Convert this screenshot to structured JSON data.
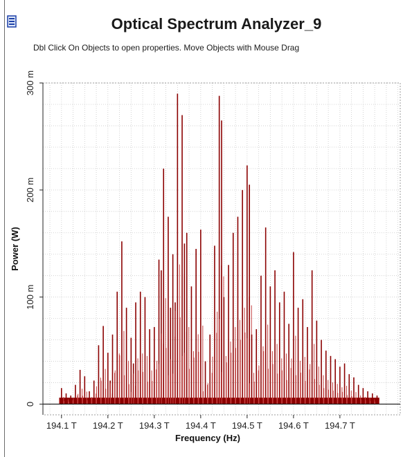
{
  "window": {
    "title": "Optical Spectrum Analyzer_9",
    "hint": "Dbl Click On Objects to open properties.  Move Objects with Mouse Drag"
  },
  "colors": {
    "trace": "#8b0000",
    "trace_light": "#c44040",
    "grid": "#c8c8c8",
    "axis": "#222222"
  },
  "chart_data": {
    "type": "bar",
    "xlabel": "Frequency (Hz)",
    "ylabel": "Power (W)",
    "xlim": [
      194.06,
      194.83
    ],
    "ylim": [
      -10,
      300
    ],
    "x_tick_labels": [
      "194.1 T",
      "194.2 T",
      "194.3 T",
      "194.4 T",
      "194.5 T",
      "194.6 T",
      "194.7 T"
    ],
    "x_ticks": [
      194.1,
      194.2,
      194.3,
      194.4,
      194.5,
      194.6,
      194.7
    ],
    "y_tick_labels": [
      "0",
      "100 m",
      "200 m",
      "300 m"
    ],
    "y_ticks": [
      0,
      100,
      200,
      300
    ],
    "grid": true,
    "units": {
      "x": "THz",
      "y": "mW"
    },
    "series": [
      {
        "x": [
          194.1,
          194.11,
          194.12,
          194.13,
          194.14,
          194.15,
          194.16,
          194.17,
          194.18,
          194.19,
          194.2,
          194.205,
          194.21,
          194.22,
          194.23,
          194.24,
          194.25,
          194.255,
          194.26,
          194.27,
          194.28,
          194.29,
          194.3,
          194.31,
          194.315,
          194.32,
          194.33,
          194.335,
          194.34,
          194.345,
          194.35,
          194.36,
          194.365,
          194.37,
          194.38,
          194.39,
          194.4,
          194.41,
          194.42,
          194.43,
          194.44,
          194.445,
          194.45,
          194.46,
          194.47,
          194.48,
          194.49,
          194.5,
          194.505,
          194.51,
          194.52,
          194.53,
          194.54,
          194.55,
          194.56,
          194.57,
          194.58,
          194.59,
          194.6,
          194.61,
          194.62,
          194.63,
          194.64,
          194.65,
          194.66,
          194.67,
          194.68,
          194.69,
          194.7,
          194.71,
          194.72,
          194.73,
          194.74,
          194.75,
          194.76,
          194.77,
          194.78
        ],
        "y": [
          15,
          10,
          8,
          18,
          32,
          26,
          12,
          22,
          55,
          73,
          48,
          22,
          65,
          105,
          152,
          90,
          62,
          38,
          95,
          105,
          100,
          70,
          72,
          135,
          125,
          220,
          175,
          90,
          140,
          95,
          290,
          270,
          150,
          160,
          110,
          145,
          163,
          40,
          65,
          148,
          288,
          265,
          100,
          130,
          160,
          175,
          200,
          223,
          205,
          65,
          70,
          120,
          165,
          110,
          125,
          95,
          105,
          75,
          142,
          90,
          98,
          72,
          125,
          78,
          60,
          50,
          45,
          42,
          35,
          38,
          28,
          25,
          18,
          15,
          12,
          10,
          8
        ]
      }
    ]
  }
}
